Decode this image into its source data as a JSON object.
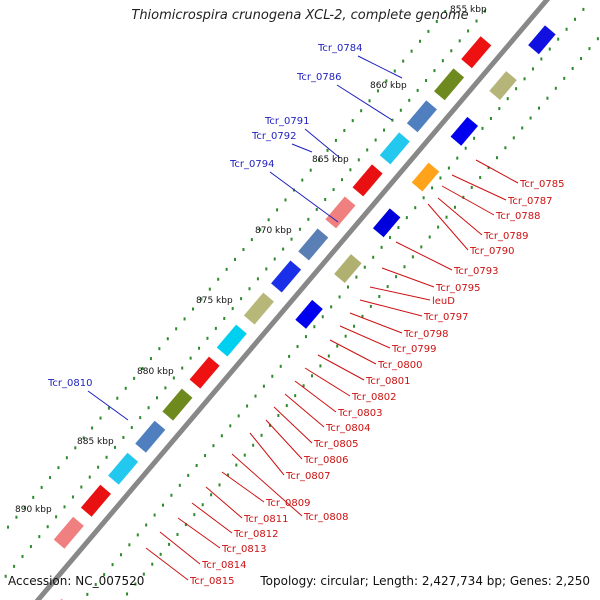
{
  "title": "Thiomicrospira crunogena XCL-2, complete genome",
  "footer": {
    "accession": "Accession: NC_007520",
    "topology": "Topology: circular; Length: 2,427,734 bp; Genes: 2,250"
  },
  "colors": {
    "forward_label": "#1f1fbf",
    "reverse_label": "#cc1111",
    "backbone": "#888888",
    "tick": "#2d8a2d"
  },
  "scale_labels": [
    "855 kbp",
    "860 kbp",
    "865 kbp",
    "870 kbp",
    "875 kbp",
    "880 kbp",
    "885 kbp",
    "890 kbp"
  ],
  "forward_genes": [
    "Tcr_0784",
    "Tcr_0786",
    "Tcr_0791",
    "Tcr_0792",
    "Tcr_0794",
    "Tcr_0810"
  ],
  "reverse_genes": [
    "Tcr_0785",
    "Tcr_0787",
    "Tcr_0788",
    "Tcr_0789",
    "Tcr_0790",
    "Tcr_0793",
    "Tcr_0795",
    "leuD",
    "Tcr_0797",
    "Tcr_0798",
    "Tcr_0799",
    "Tcr_0800",
    "Tcr_0801",
    "Tcr_0802",
    "Tcr_0803",
    "Tcr_0804",
    "Tcr_0805",
    "Tcr_0806",
    "Tcr_0807",
    "Tcr_0808",
    "Tcr_0809",
    "Tcr_0811",
    "Tcr_0812",
    "Tcr_0813",
    "Tcr_0814",
    "Tcr_0815"
  ]
}
